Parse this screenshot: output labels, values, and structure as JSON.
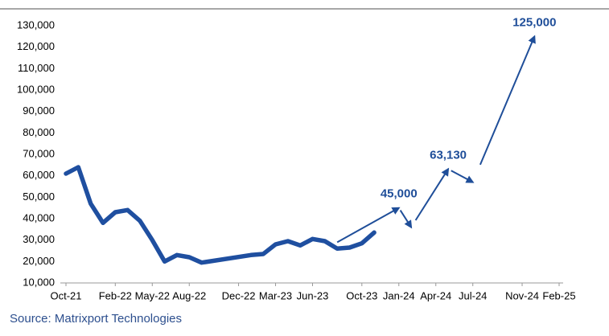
{
  "chart_data": {
    "type": "line",
    "source": "Source: Matrixport Technologies",
    "xlim": [
      "2021-10",
      "2025-02"
    ],
    "xticks": [
      {
        "value": "2021-10",
        "label": "Oct-21"
      },
      {
        "value": "2022-02",
        "label": "Feb-22"
      },
      {
        "value": "2022-05",
        "label": "May-22"
      },
      {
        "value": "2022-08",
        "label": "Aug-22"
      },
      {
        "value": "2022-12",
        "label": "Dec-22"
      },
      {
        "value": "2023-03",
        "label": "Mar-23"
      },
      {
        "value": "2023-06",
        "label": "Jun-23"
      },
      {
        "value": "2023-10",
        "label": "Oct-23"
      },
      {
        "value": "2024-01",
        "label": "Jan-24"
      },
      {
        "value": "2024-04",
        "label": "Apr-24"
      },
      {
        "value": "2024-07",
        "label": "Jul-24"
      },
      {
        "value": "2024-11",
        "label": "Nov-24"
      },
      {
        "value": "2025-02",
        "label": "Feb-25"
      }
    ],
    "ylim": [
      10000,
      130000
    ],
    "yticks": [
      {
        "value": 10000,
        "label": "10,000"
      },
      {
        "value": 20000,
        "label": "20,000"
      },
      {
        "value": 30000,
        "label": "30,000"
      },
      {
        "value": 40000,
        "label": "40,000"
      },
      {
        "value": 50000,
        "label": "50,000"
      },
      {
        "value": 60000,
        "label": "60,000"
      },
      {
        "value": 70000,
        "label": "70,000"
      },
      {
        "value": 80000,
        "label": "80,000"
      },
      {
        "value": 90000,
        "label": "90,000"
      },
      {
        "value": 100000,
        "label": "100,000"
      },
      {
        "value": 110000,
        "label": "110,000"
      },
      {
        "value": 120000,
        "label": "120,000"
      },
      {
        "value": 130000,
        "label": "130,000"
      }
    ],
    "grid": false,
    "series": [
      {
        "color": "#1f4fa0",
        "x": [
          "2021-10",
          "2021-11",
          "2021-12",
          "2022-01",
          "2022-02",
          "2022-03",
          "2022-04",
          "2022-05",
          "2022-06",
          "2022-07",
          "2022-08",
          "2022-09",
          "2023-01",
          "2023-02",
          "2023-03",
          "2023-04",
          "2023-05",
          "2023-06",
          "2023-07",
          "2023-08",
          "2023-09",
          "2023-10",
          "2023-11"
        ],
        "values": [
          61000,
          64000,
          47000,
          38000,
          43000,
          44000,
          39000,
          30000,
          20000,
          23000,
          22000,
          19500,
          23000,
          23500,
          28000,
          29500,
          27500,
          30500,
          29500,
          26000,
          26500,
          28500,
          33500
        ]
      }
    ],
    "projection": {
      "color": "#1f4e99",
      "x": [
        "2023-08",
        "2024-01",
        "2024-02",
        "2024-05",
        "2024-07",
        "2024-12"
      ],
      "values": [
        29000,
        45000,
        36000,
        63130,
        57000,
        125000
      ],
      "value_labels": [
        null,
        "45,000",
        null,
        "63,130",
        null,
        "125,000"
      ]
    }
  }
}
